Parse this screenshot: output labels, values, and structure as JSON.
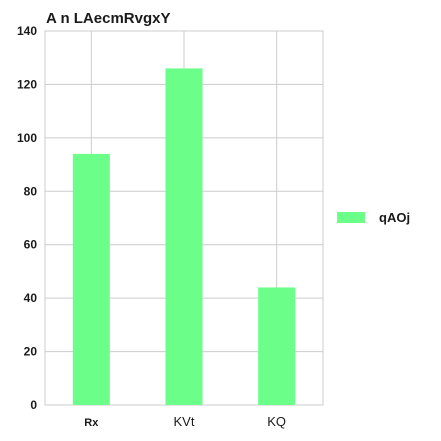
{
  "chart_data": {
    "type": "bar",
    "title": "A n LAecmRvgxY",
    "categories": [
      "Rx",
      "KVt",
      "KQ"
    ],
    "series": [
      {
        "name": "qAOj",
        "values": [
          94,
          126,
          44
        ]
      }
    ],
    "xlabel": "",
    "ylabel": "",
    "ylim": [
      0,
      140
    ],
    "yticks": [
      0,
      20,
      40,
      60,
      80,
      100,
      120,
      140
    ],
    "grid": true,
    "legend_position": "right",
    "bar_color": "#6bff8a",
    "grid_color": "#cccccc"
  }
}
